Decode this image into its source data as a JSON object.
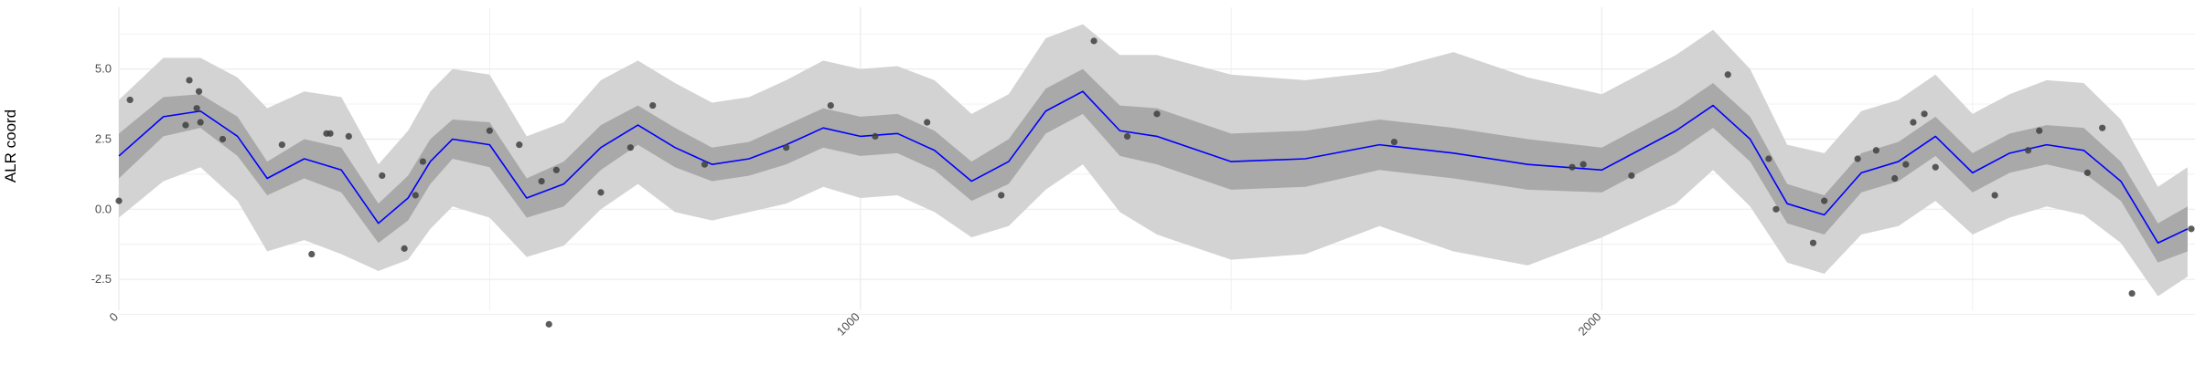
{
  "chart_data": {
    "type": "line",
    "title": "",
    "xlabel": "",
    "ylabel": "ALR coord",
    "xlim": [
      0,
      2800
    ],
    "ylim": [
      -3.6,
      7.2
    ],
    "x_ticks": [
      0,
      1000,
      2000
    ],
    "x_tick_labels": [
      "0",
      "1000",
      "2000"
    ],
    "y_ticks": [
      -2.5,
      0.0,
      2.5,
      5.0
    ],
    "y_tick_labels": [
      "-2.5",
      "0.0",
      "2.5",
      "5.0"
    ],
    "grid": true,
    "legend": "none",
    "colors": {
      "mean_line": "#0000ff",
      "inner_band": "#a9a9a9",
      "outer_band": "#d3d3d3",
      "points": "#404040",
      "grid": "#ebebeb"
    },
    "curve": {
      "x": [
        0,
        60,
        110,
        160,
        200,
        250,
        300,
        350,
        390,
        420,
        450,
        500,
        550,
        600,
        650,
        700,
        750,
        800,
        850,
        900,
        950,
        1000,
        1050,
        1100,
        1150,
        1200,
        1250,
        1300,
        1350,
        1400,
        1500,
        1600,
        1700,
        1800,
        1900,
        2000,
        2100,
        2150,
        2200,
        2250,
        2300,
        2350,
        2400,
        2450,
        2500,
        2550,
        2600,
        2650,
        2700,
        2750,
        2790
      ],
      "mean": [
        1.9,
        3.3,
        3.5,
        2.6,
        1.1,
        1.8,
        1.4,
        -0.5,
        0.4,
        1.7,
        2.5,
        2.3,
        0.4,
        0.9,
        2.2,
        3.0,
        2.2,
        1.6,
        1.8,
        2.3,
        2.9,
        2.6,
        2.7,
        2.1,
        1.0,
        1.7,
        3.5,
        4.2,
        2.8,
        2.6,
        1.7,
        1.8,
        2.3,
        2.0,
        1.6,
        1.4,
        2.8,
        3.7,
        2.5,
        0.2,
        -0.2,
        1.3,
        1.7,
        2.6,
        1.3,
        2.0,
        2.3,
        2.1,
        1.0,
        -1.2,
        -0.7
      ],
      "inner_lower": [
        1.1,
        2.6,
        2.9,
        1.9,
        0.5,
        1.1,
        0.6,
        -1.2,
        -0.4,
        0.9,
        1.8,
        1.5,
        -0.3,
        0.1,
        1.4,
        2.3,
        1.5,
        1.0,
        1.2,
        1.6,
        2.2,
        1.9,
        2.0,
        1.4,
        0.3,
        0.9,
        2.7,
        3.4,
        1.9,
        1.6,
        0.7,
        0.8,
        1.4,
        1.1,
        0.7,
        0.6,
        2.0,
        2.9,
        1.7,
        -0.5,
        -0.9,
        0.6,
        1.0,
        1.9,
        0.6,
        1.3,
        1.6,
        1.3,
        0.3,
        -1.9,
        -1.5
      ],
      "inner_upper": [
        2.7,
        4.0,
        4.1,
        3.3,
        1.7,
        2.5,
        2.2,
        0.2,
        1.2,
        2.5,
        3.2,
        3.1,
        1.1,
        1.7,
        3.0,
        3.7,
        2.9,
        2.2,
        2.4,
        3.0,
        3.6,
        3.3,
        3.4,
        2.8,
        1.7,
        2.5,
        4.3,
        5.0,
        3.7,
        3.6,
        2.7,
        2.8,
        3.2,
        2.9,
        2.5,
        2.2,
        3.6,
        4.5,
        3.3,
        0.9,
        0.5,
        2.0,
        2.4,
        3.3,
        2.0,
        2.7,
        3.0,
        2.9,
        1.7,
        -0.5,
        0.1
      ],
      "outer_lower": [
        -0.3,
        1.0,
        1.5,
        0.3,
        -1.5,
        -1.1,
        -1.6,
        -2.2,
        -1.8,
        -0.7,
        0.1,
        -0.3,
        -1.7,
        -1.3,
        0.0,
        0.9,
        -0.1,
        -0.4,
        -0.1,
        0.2,
        0.8,
        0.4,
        0.5,
        -0.1,
        -1.0,
        -0.6,
        0.7,
        1.6,
        -0.1,
        -0.9,
        -1.8,
        -1.6,
        -0.6,
        -1.5,
        -2.0,
        -1.0,
        0.2,
        1.4,
        0.1,
        -1.9,
        -2.3,
        -0.9,
        -0.6,
        0.3,
        -0.9,
        -0.3,
        0.1,
        -0.2,
        -1.2,
        -3.1,
        -2.4
      ],
      "outer_upper": [
        3.9,
        5.4,
        5.4,
        4.7,
        3.6,
        4.2,
        4.0,
        1.6,
        2.8,
        4.2,
        5.0,
        4.8,
        2.6,
        3.1,
        4.6,
        5.3,
        4.5,
        3.8,
        4.0,
        4.6,
        5.3,
        5.0,
        5.1,
        4.6,
        3.4,
        4.1,
        6.1,
        6.6,
        5.5,
        5.5,
        4.8,
        4.6,
        4.9,
        5.6,
        4.7,
        4.1,
        5.5,
        6.4,
        5.0,
        2.3,
        2.0,
        3.5,
        3.9,
        4.8,
        3.4,
        4.1,
        4.6,
        4.5,
        3.2,
        0.8,
        1.5
      ]
    },
    "points": {
      "x": [
        0,
        15,
        90,
        95,
        105,
        108,
        110,
        140,
        220,
        260,
        280,
        285,
        310,
        355,
        385,
        400,
        410,
        500,
        540,
        570,
        580,
        590,
        650,
        690,
        720,
        790,
        900,
        960,
        1020,
        1090,
        1190,
        1315,
        1360,
        1400,
        1720,
        1960,
        1975,
        2040,
        2170,
        2225,
        2235,
        2285,
        2300,
        2345,
        2370,
        2395,
        2410,
        2420,
        2435,
        2450,
        2530,
        2575,
        2590,
        2655,
        2675,
        2715,
        2795
      ],
      "y": [
        0.3,
        3.9,
        3.0,
        4.6,
        3.6,
        4.2,
        3.1,
        2.5,
        2.3,
        -1.6,
        2.7,
        2.7,
        2.6,
        1.2,
        -1.4,
        0.5,
        1.7,
        2.8,
        2.3,
        1.0,
        -4.1,
        1.4,
        0.6,
        2.2,
        3.7,
        1.6,
        2.2,
        3.7,
        2.6,
        3.1,
        0.5,
        6.0,
        2.6,
        3.4,
        2.4,
        1.5,
        1.6,
        1.2,
        4.8,
        1.8,
        0.0,
        -1.2,
        0.3,
        1.8,
        2.1,
        1.1,
        1.6,
        3.1,
        3.4,
        1.5,
        0.5,
        2.1,
        2.8,
        1.3,
        2.9,
        -3.0,
        -0.7
      ]
    }
  }
}
